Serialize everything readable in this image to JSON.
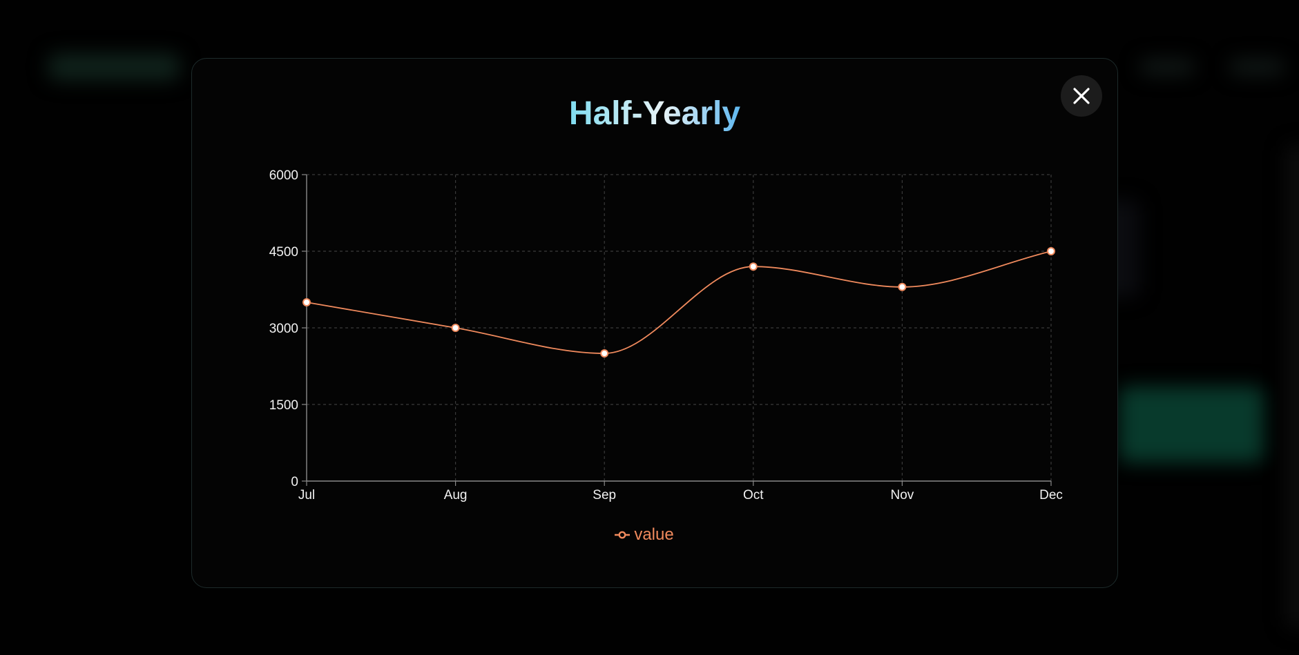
{
  "modal": {
    "title": "Half-Yearly",
    "close_icon": "close-icon"
  },
  "colors": {
    "series_line": "#f08a5d",
    "point_fill": "#ffffff",
    "grid": "#3a3a3a",
    "axis": "#8a8a8a",
    "tick_text": "#f2f2f2",
    "title_gradient": [
      "#7fdcf0",
      "#e8f3f6",
      "#5fb8f0"
    ]
  },
  "chart_data": {
    "type": "line",
    "categories": [
      "Jul",
      "Aug",
      "Sep",
      "Oct",
      "Nov",
      "Dec"
    ],
    "series": [
      {
        "name": "value",
        "values": [
          3500,
          3000,
          2500,
          4200,
          3800,
          4500
        ]
      }
    ],
    "ylim": [
      0,
      6000
    ],
    "yticks": [
      0,
      1500,
      3000,
      4500,
      6000
    ],
    "grid": true,
    "grid_style": "dashed",
    "legend": "bottom-center",
    "curve": "smooth"
  }
}
